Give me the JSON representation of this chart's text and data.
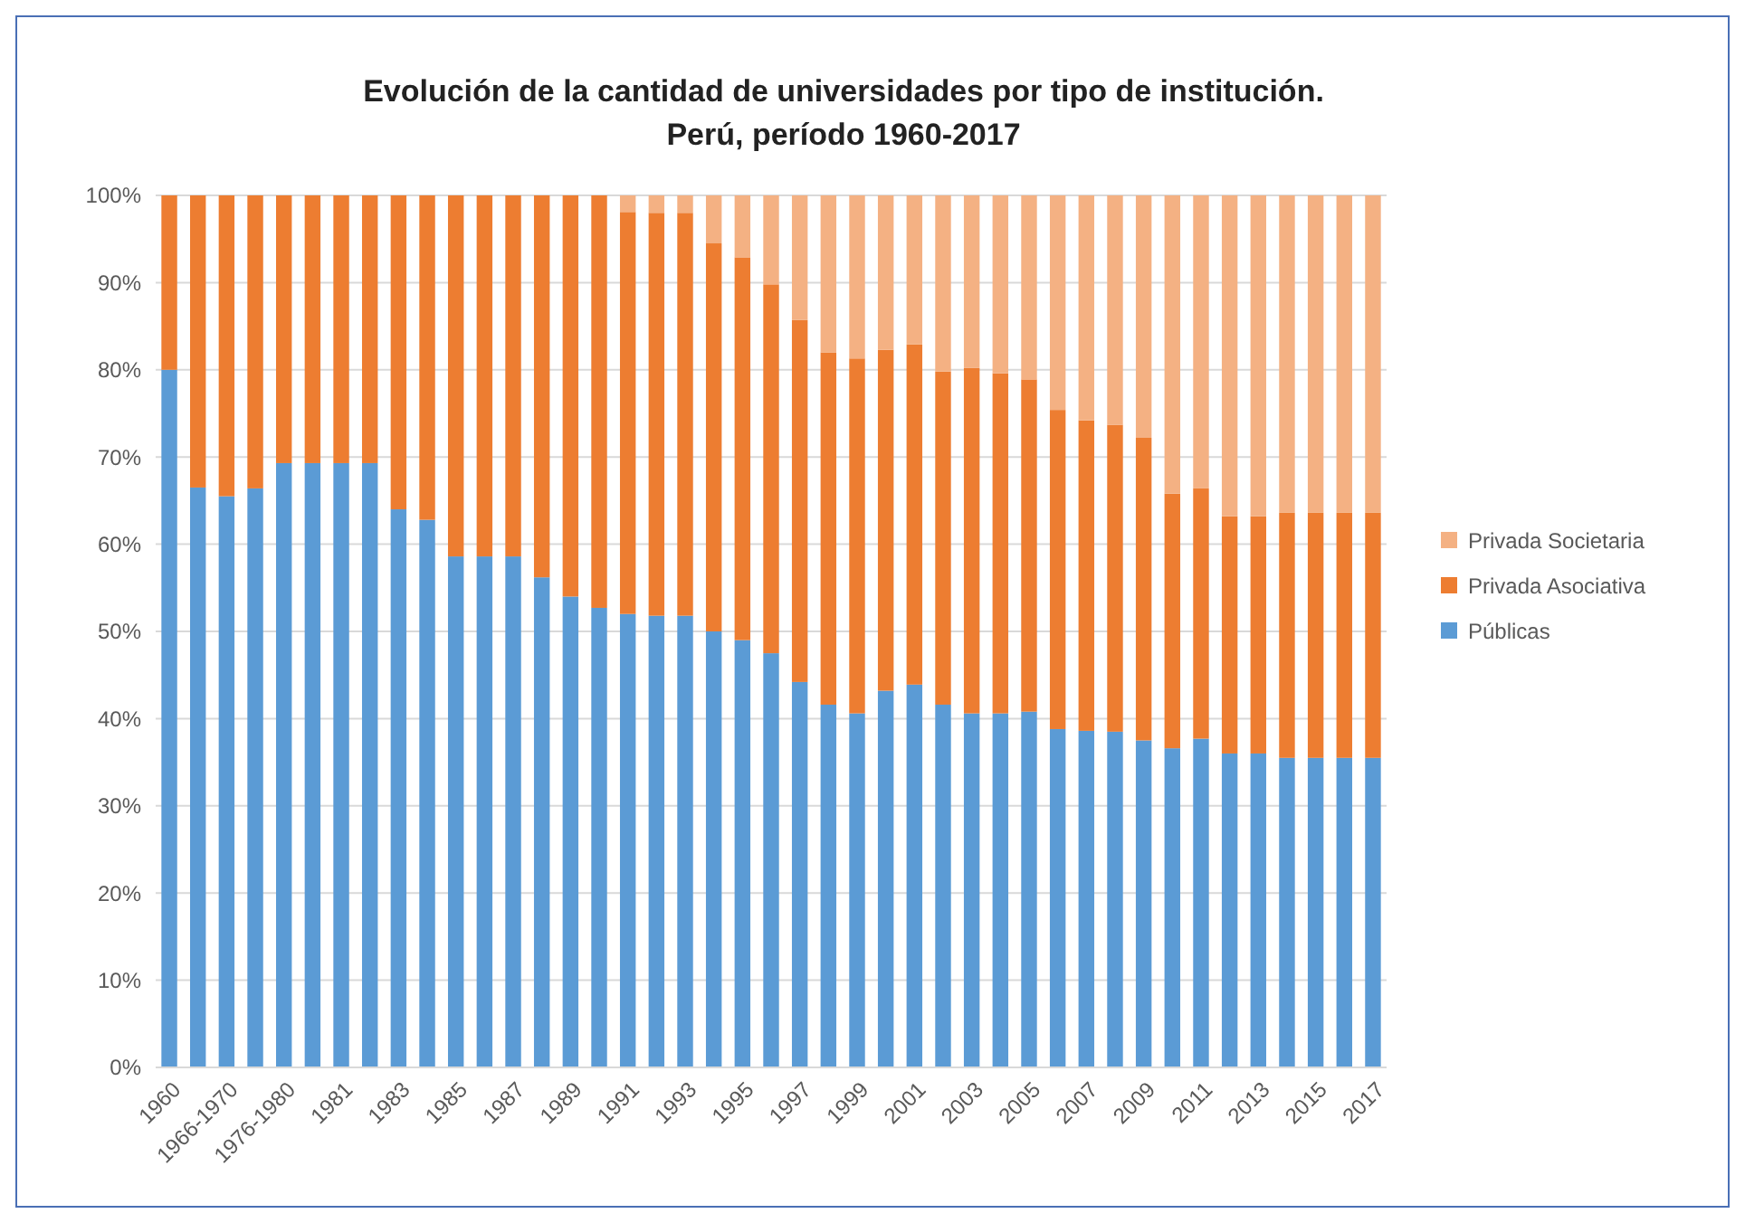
{
  "chart_data": {
    "type": "bar",
    "title": "Evolución de la cantidad de universidades por tipo de institución. Perú, período 1960-2017",
    "categories": [
      "1960",
      null,
      "1966-1970",
      null,
      "1976-1980",
      null,
      "1981",
      null,
      "1983",
      null,
      "1985",
      null,
      "1987",
      null,
      "1989",
      null,
      "1991",
      null,
      "1993",
      null,
      "1995",
      null,
      "1997",
      null,
      "1999",
      null,
      "2001",
      null,
      "2003",
      null,
      "2005",
      null,
      "2007",
      null,
      "2009",
      null,
      "2011",
      null,
      "2013",
      null,
      "2015",
      null,
      "2017"
    ],
    "stacked": true,
    "series": [
      {
        "name": "Públicas",
        "color": "#5b9bd5",
        "values": [
          80,
          66.5,
          65.5,
          66.4,
          69.3,
          69.3,
          69.3,
          69.3,
          64,
          62.8,
          58.6,
          58.6,
          58.6,
          56.2,
          54,
          52.7,
          52,
          51.8,
          51.8,
          50,
          49,
          47.5,
          44.2,
          41.6,
          40.6,
          43.2,
          43.9,
          41.6,
          40.6,
          40.6,
          40.8,
          38.8,
          38.6,
          38.5,
          37.5,
          36.6,
          37.7,
          36,
          36,
          35.5,
          35.5,
          35.5,
          35.5
        ]
      },
      {
        "name": "Privada Asociativa",
        "color": "#ed7d31",
        "values": [
          20,
          33.5,
          34.5,
          33.6,
          30.7,
          30.7,
          30.7,
          30.7,
          36,
          37.2,
          41.4,
          41.4,
          41.4,
          43.8,
          46,
          47.3,
          46.1,
          46.2,
          46.2,
          44.5,
          43.9,
          42.3,
          41.5,
          40.4,
          40.7,
          39.1,
          39,
          38.2,
          39.6,
          39,
          38.1,
          36.6,
          35.6,
          35.2,
          34.7,
          29.2,
          28.7,
          27.2,
          27.2,
          28.1,
          28.1,
          28.1,
          28.1
        ]
      },
      {
        "name": "Privada Societaria",
        "color": "#f4b183",
        "values": [
          0,
          0,
          0,
          0,
          0,
          0,
          0,
          0,
          0,
          0,
          0,
          0,
          0,
          0,
          0,
          0,
          1.9,
          2,
          2,
          5.5,
          7.1,
          10.2,
          14.3,
          18,
          18.7,
          17.7,
          17.1,
          20.2,
          19.8,
          20.4,
          21.1,
          24.6,
          25.8,
          26.3,
          27.8,
          34.2,
          33.6,
          36.8,
          36.8,
          36.4,
          36.4,
          36.4,
          36.4
        ]
      }
    ],
    "ylim": [
      0,
      100
    ],
    "yticks": [
      {
        "value": 0,
        "label": "0%"
      },
      {
        "value": 10,
        "label": "10%"
      },
      {
        "value": 20,
        "label": "20%"
      },
      {
        "value": 30,
        "label": "30%"
      },
      {
        "value": 40,
        "label": "40%"
      },
      {
        "value": 50,
        "label": "50%"
      },
      {
        "value": 60,
        "label": "60%"
      },
      {
        "value": 70,
        "label": "70%"
      },
      {
        "value": 80,
        "label": "80%"
      },
      {
        "value": 90,
        "label": "90%"
      },
      {
        "value": 100,
        "label": "100%"
      }
    ],
    "grid": "y",
    "legend": "right"
  }
}
